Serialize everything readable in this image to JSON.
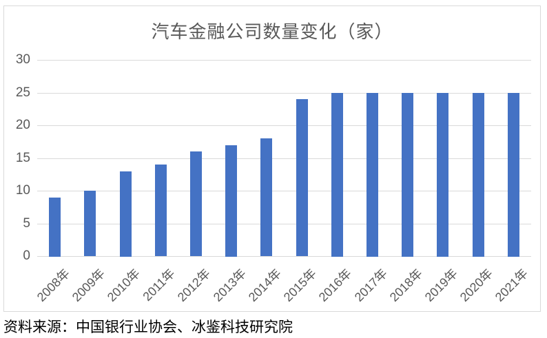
{
  "page": {
    "source_note": "资料来源：中国银行业协会、冰鉴科技研究院"
  },
  "chart_data": {
    "type": "bar",
    "title": "汽车金融公司数量变化（家）",
    "categories": [
      "2008年",
      "2009年",
      "2010年",
      "2011年",
      "2012年",
      "2013年",
      "2014年",
      "2015年",
      "2016年",
      "2017年",
      "2018年",
      "2019年",
      "2020年",
      "2021年"
    ],
    "values": [
      9,
      10,
      13,
      14,
      16,
      17,
      18,
      24,
      25,
      25,
      25,
      25,
      25,
      25
    ],
    "xlabel": "",
    "ylabel": "",
    "ylim": [
      0,
      30
    ],
    "yticks": [
      0,
      5,
      10,
      15,
      20,
      25,
      30
    ],
    "grid": true,
    "legend": false,
    "colors": {
      "bar": "#4472C4",
      "gridline": "#D9D9D9",
      "axis_label": "#595959",
      "title": "#595959",
      "frame_border": "#D9D9D9",
      "source_text": "#000000"
    }
  }
}
